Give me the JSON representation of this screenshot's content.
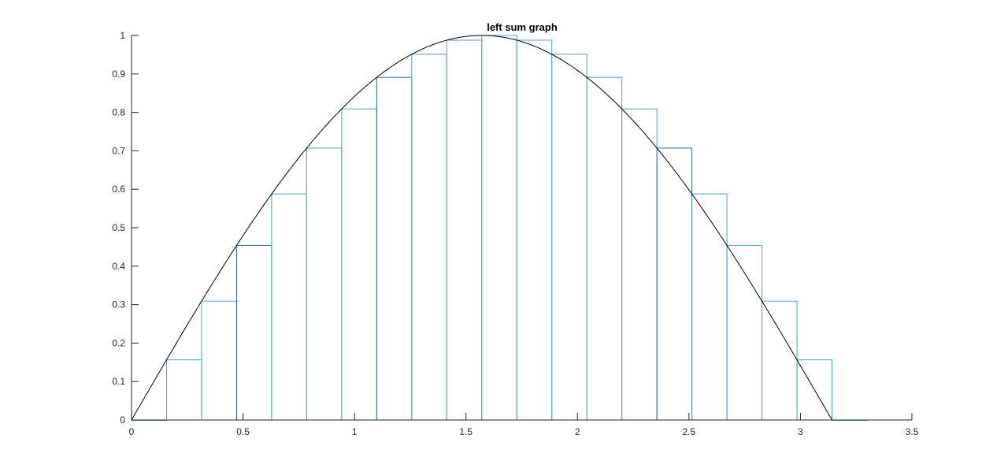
{
  "chart_data": {
    "type": "bar",
    "title": "left sum graph",
    "xlabel": "",
    "ylabel": "",
    "xlim": [
      0,
      3.5
    ],
    "ylim": [
      0,
      1
    ],
    "x_ticks": [
      "0",
      "0.5",
      "1",
      "1.5",
      "2",
      "2.5",
      "3",
      "3.5"
    ],
    "y_ticks": [
      "0",
      "0.1",
      "0.2",
      "0.3",
      "0.4",
      "0.5",
      "0.6",
      "0.7",
      "0.8",
      "0.9",
      "1"
    ],
    "grid": false,
    "bar_left_edges": [
      0,
      0.1571,
      0.3142,
      0.4712,
      0.6283,
      0.7854,
      0.9425,
      1.0996,
      1.2566,
      1.4137,
      1.5708,
      1.7279,
      1.885,
      2.042,
      2.1991,
      2.3562,
      2.5133,
      2.6704,
      2.8274,
      2.9845,
      3.1416
    ],
    "bar_width": 0.1571,
    "bar_heights": [
      0,
      0.1564,
      0.309,
      0.454,
      0.5878,
      0.7071,
      0.809,
      0.891,
      0.9511,
      0.9877,
      1.0,
      0.9877,
      0.9511,
      0.891,
      0.809,
      0.7071,
      0.5878,
      0.454,
      0.309,
      0.1564,
      0
    ],
    "curve": {
      "function": "sin(x)",
      "x_range": [
        0,
        3.1416
      ]
    },
    "colors": {
      "bars": "#4aa3cf",
      "bars_dark": "#2e6e9e",
      "curve": "#000000",
      "axis": "#262626"
    }
  }
}
